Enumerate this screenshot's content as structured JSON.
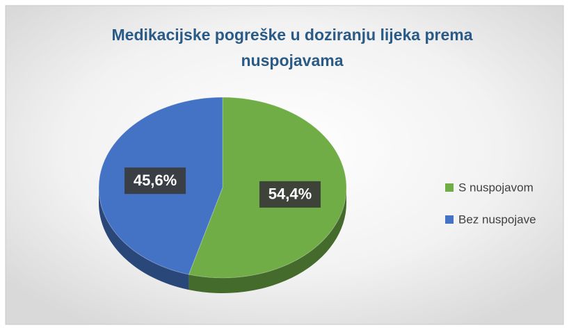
{
  "chart_data": {
    "type": "pie",
    "title": "Medikacijske pogreške u doziranju lijeka prema nuspojavama",
    "categories": [
      "S nuspojavom",
      "Bez nuspojave"
    ],
    "values": [
      54.4,
      45.6
    ],
    "value_labels": [
      "54,4%",
      "45,6%"
    ],
    "colors": [
      "#70ad47",
      "#4472c4"
    ],
    "legend": "right"
  }
}
